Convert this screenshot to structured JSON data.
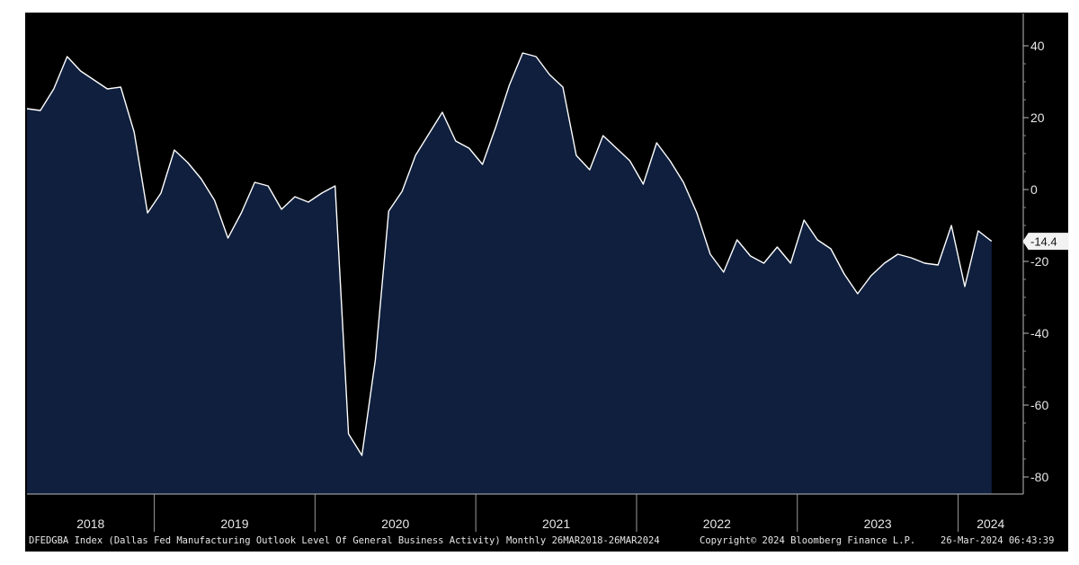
{
  "chart_data": {
    "type": "area",
    "ticker": "DFEDGBA Index",
    "title": "DFEDGBA Index (Dallas Fed Manufacturing Outlook Level Of General Business Activity)",
    "frequency": "Monthly 26MAR2018-26MAR2024",
    "copyright": "Copyright© 2024 Bloomberg Finance L.P.",
    "timestamp": "26-Mar-2024 06:43:39",
    "ylim": [
      -85,
      50
    ],
    "yticks": [
      40,
      20,
      0,
      -20,
      -40,
      -60,
      -80
    ],
    "ytick_labels": [
      "40",
      "20",
      "0",
      "-20",
      "-40",
      "-60",
      "-80"
    ],
    "year_labels": [
      "2018",
      "2019",
      "2020",
      "2021",
      "2022",
      "2023",
      "2024"
    ],
    "last_value_label": "-14.4",
    "colors": {
      "fill": "#0f1f3d",
      "line": "#ffffff",
      "background": "#000000",
      "text": "#e6e6e6"
    },
    "x": [
      "2018-03",
      "2018-04",
      "2018-05",
      "2018-06",
      "2018-07",
      "2018-08",
      "2018-09",
      "2018-10",
      "2018-11",
      "2018-12",
      "2019-01",
      "2019-02",
      "2019-03",
      "2019-04",
      "2019-05",
      "2019-06",
      "2019-07",
      "2019-08",
      "2019-09",
      "2019-10",
      "2019-11",
      "2019-12",
      "2020-01",
      "2020-02",
      "2020-03",
      "2020-04",
      "2020-05",
      "2020-06",
      "2020-07",
      "2020-08",
      "2020-09",
      "2020-10",
      "2020-11",
      "2020-12",
      "2021-01",
      "2021-02",
      "2021-03",
      "2021-04",
      "2021-05",
      "2021-06",
      "2021-07",
      "2021-08",
      "2021-09",
      "2021-10",
      "2021-11",
      "2021-12",
      "2022-01",
      "2022-02",
      "2022-03",
      "2022-04",
      "2022-05",
      "2022-06",
      "2022-07",
      "2022-08",
      "2022-09",
      "2022-10",
      "2022-11",
      "2022-12",
      "2023-01",
      "2023-02",
      "2023-03",
      "2023-04",
      "2023-05",
      "2023-06",
      "2023-07",
      "2023-08",
      "2023-09",
      "2023-10",
      "2023-11",
      "2023-12",
      "2024-01",
      "2024-02",
      "2024-03"
    ],
    "series": [
      {
        "values": [
          22.5,
          22,
          28,
          37,
          33,
          30.5,
          28,
          28.5,
          16,
          -6.5,
          -1,
          11,
          7.5,
          3,
          -3,
          -13.5,
          -6.5,
          2,
          1,
          -5.5,
          -2,
          -3.5,
          -1,
          1,
          -68,
          -74,
          -47.5,
          -6,
          -0.5,
          9.5,
          15.5,
          21.5,
          13.5,
          11.5,
          7,
          17.5,
          29,
          38,
          37,
          32,
          28.5,
          9.5,
          5.5,
          15,
          11.5,
          8,
          1.5,
          13,
          8,
          2,
          -6.5,
          -18,
          -23,
          -14,
          -18.5,
          -20.5,
          -16,
          -20.5,
          -8.5,
          -14,
          -16.5,
          -23.5,
          -29,
          -24,
          -20.5,
          -18,
          -19,
          -20.5,
          -21,
          -10,
          -27,
          -11.5,
          -14.4
        ]
      }
    ]
  }
}
